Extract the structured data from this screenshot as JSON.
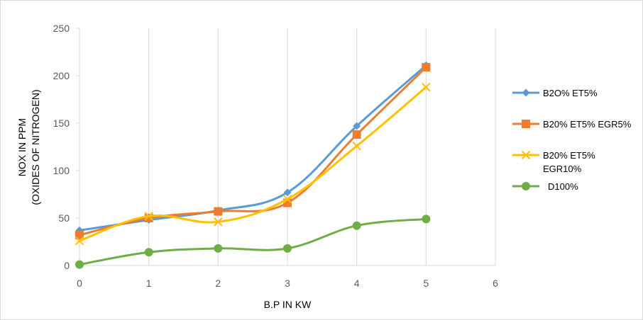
{
  "chart_data": {
    "type": "line",
    "xlabel": "B.P IN KW",
    "ylabel_line1": "NOX IN PPM",
    "ylabel_line2": "(OXIDES OF NITROGEN)",
    "xlim": [
      0,
      6
    ],
    "ylim": [
      0,
      250
    ],
    "x_ticks": [
      "0",
      "1",
      "2",
      "3",
      "4",
      "5",
      "6"
    ],
    "y_ticks": [
      "0",
      "50",
      "100",
      "150",
      "200",
      "250"
    ],
    "grid": "vertical",
    "legend_position": "right",
    "x": [
      0,
      1,
      2,
      3,
      4,
      5
    ],
    "series": [
      {
        "name": "B2O% ET5%",
        "legend_lines": [
          "B2O% ET5%"
        ],
        "color": "#5b9bd5",
        "marker": "diamond",
        "values": [
          37,
          48,
          58,
          77,
          147,
          211
        ]
      },
      {
        "name": "B20% ET5% EGR5%",
        "legend_lines": [
          "B20% ET5% EGR5%"
        ],
        "color": "#ed7d31",
        "marker": "square",
        "values": [
          32,
          50,
          57,
          66,
          138,
          209
        ]
      },
      {
        "name": "B20% ET5% EGR10%",
        "legend_lines": [
          "B20% ET5%",
          "EGR10%"
        ],
        "color": "#ffc000",
        "marker": "x",
        "values": [
          26,
          52,
          46,
          70,
          126,
          188
        ]
      },
      {
        "name": "D100%",
        "legend_lines": [
          "D100%"
        ],
        "color": "#70ad47",
        "marker": "circle",
        "values": [
          1,
          14,
          18,
          18,
          42,
          49
        ]
      }
    ]
  }
}
